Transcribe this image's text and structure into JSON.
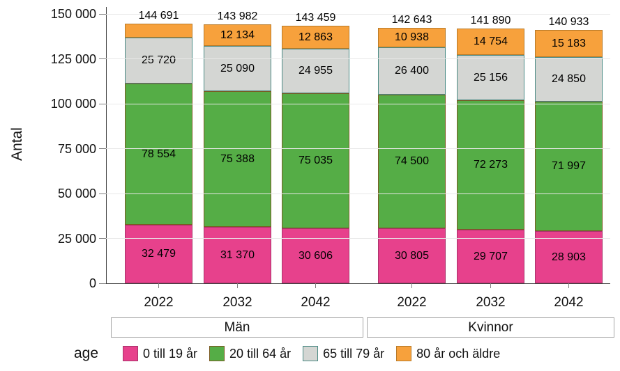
{
  "y_axis": {
    "label": "Antal",
    "tick_values": [
      0,
      25000,
      50000,
      75000,
      100000,
      125000,
      150000
    ],
    "tick_labels": [
      "0",
      "25 000",
      "50 000",
      "75 000",
      "100 000",
      "125 000",
      "150 000"
    ]
  },
  "x_axis": {
    "years": [
      "2022",
      "2032",
      "2042",
      "2022",
      "2032",
      "2042"
    ],
    "groups": [
      {
        "label": "Män"
      },
      {
        "label": "Kvinnor"
      }
    ]
  },
  "legend": {
    "title": "age",
    "items": [
      {
        "label": "0 till 19 år",
        "color": "#e7418c",
        "border_color": "#a8336b"
      },
      {
        "label": "20 till 64 år",
        "color": "#55ad46",
        "border_color": "#7a5b22"
      },
      {
        "label": "65 till 79 år",
        "color": "#d4d6d3",
        "border_color": "#4a8a84"
      },
      {
        "label": "80 år och äldre",
        "color": "#f7a13c",
        "border_color": "#b87a28"
      }
    ]
  },
  "chart_data": {
    "type": "bar",
    "stacked": true,
    "title": "",
    "ylabel": "Antal",
    "ylim": [
      0,
      150000
    ],
    "grid": true,
    "legend_position": "bottom",
    "group_labels": [
      "Män",
      "Kvinnor"
    ],
    "categories": [
      "Män 2022",
      "Män 2032",
      "Män 2042",
      "Kvinnor 2022",
      "Kvinnor 2032",
      "Kvinnor 2042"
    ],
    "series": [
      {
        "name": "0 till 19 år",
        "color": "#e7418c",
        "border_color": "#a8336b",
        "values": [
          32479,
          31370,
          30606,
          30805,
          29707,
          28903
        ],
        "labels": [
          "32 479",
          "31 370",
          "30 606",
          "30 805",
          "29 707",
          "28 903"
        ]
      },
      {
        "name": "20 till 64 år",
        "color": "#55ad46",
        "border_color": "#7a5b22",
        "values": [
          78554,
          75388,
          75035,
          74500,
          72273,
          71997
        ],
        "labels": [
          "78 554",
          "75 388",
          "75 035",
          "74 500",
          "72 273",
          "71 997"
        ]
      },
      {
        "name": "65 till 79 år",
        "color": "#d4d6d3",
        "border_color": "#4a8a84",
        "values": [
          25720,
          25090,
          24955,
          26400,
          25156,
          24850
        ],
        "labels": [
          "25 720",
          "25 090",
          "24 955",
          "26 400",
          "25 156",
          "24 850"
        ]
      },
      {
        "name": "80 år och äldre",
        "color": "#f7a13c",
        "border_color": "#b87a28",
        "values": [
          7938,
          12134,
          12863,
          10938,
          14754,
          15183
        ],
        "labels": [
          "",
          "12 134",
          "12 863",
          "10 938",
          "14 754",
          "15 183"
        ]
      }
    ],
    "totals": [
      144691,
      143982,
      143459,
      142643,
      141890,
      140933
    ],
    "total_labels": [
      "144 691",
      "143 982",
      "143 459",
      "142 643",
      "141 890",
      "140 933"
    ]
  }
}
